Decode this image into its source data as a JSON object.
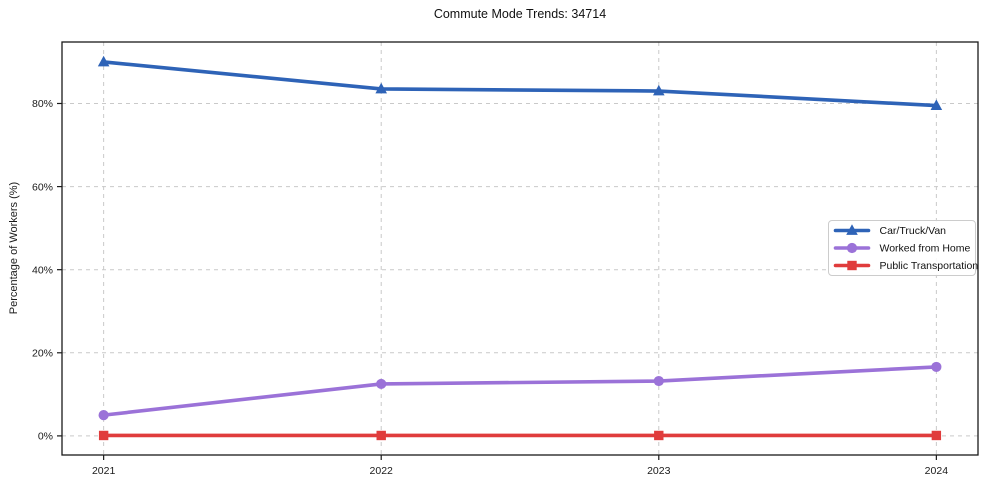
{
  "chart_data": {
    "type": "line",
    "title": "Commute Mode Trends: 34714",
    "xlabel": "",
    "ylabel": "Percentage of Workers (%)",
    "x": [
      2021,
      2022,
      2023,
      2024
    ],
    "xtick_labels": [
      "2021",
      "2022",
      "2023",
      "2024"
    ],
    "yticks": [
      0,
      20,
      40,
      60,
      80
    ],
    "ytick_labels": [
      "0%",
      "20%",
      "40%",
      "60%",
      "80%"
    ],
    "xlim": [
      2020.85,
      2024.15
    ],
    "ylim": [
      -4.6,
      94.8
    ],
    "grid": true,
    "grid_style": "dashed",
    "legend_position": "center-right",
    "series": [
      {
        "name": "Car/Truck/Van",
        "marker": "triangle",
        "color": "#2e63b7",
        "values": [
          90.0,
          83.5,
          83.0,
          79.5
        ]
      },
      {
        "name": "Worked from Home",
        "marker": "circle",
        "color": "#9b72d8",
        "values": [
          5.0,
          12.5,
          13.2,
          16.6
        ]
      },
      {
        "name": "Public Transportation",
        "marker": "square",
        "color": "#e03c3c",
        "values": [
          0.1,
          0.1,
          0.1,
          0.1
        ]
      }
    ],
    "colors": {
      "grid": "#c9c9c9",
      "spine": "#1a1a1a",
      "tick_label": "#1a1a1a",
      "legend_border": "#cccccc",
      "background": "#ffffff"
    }
  }
}
